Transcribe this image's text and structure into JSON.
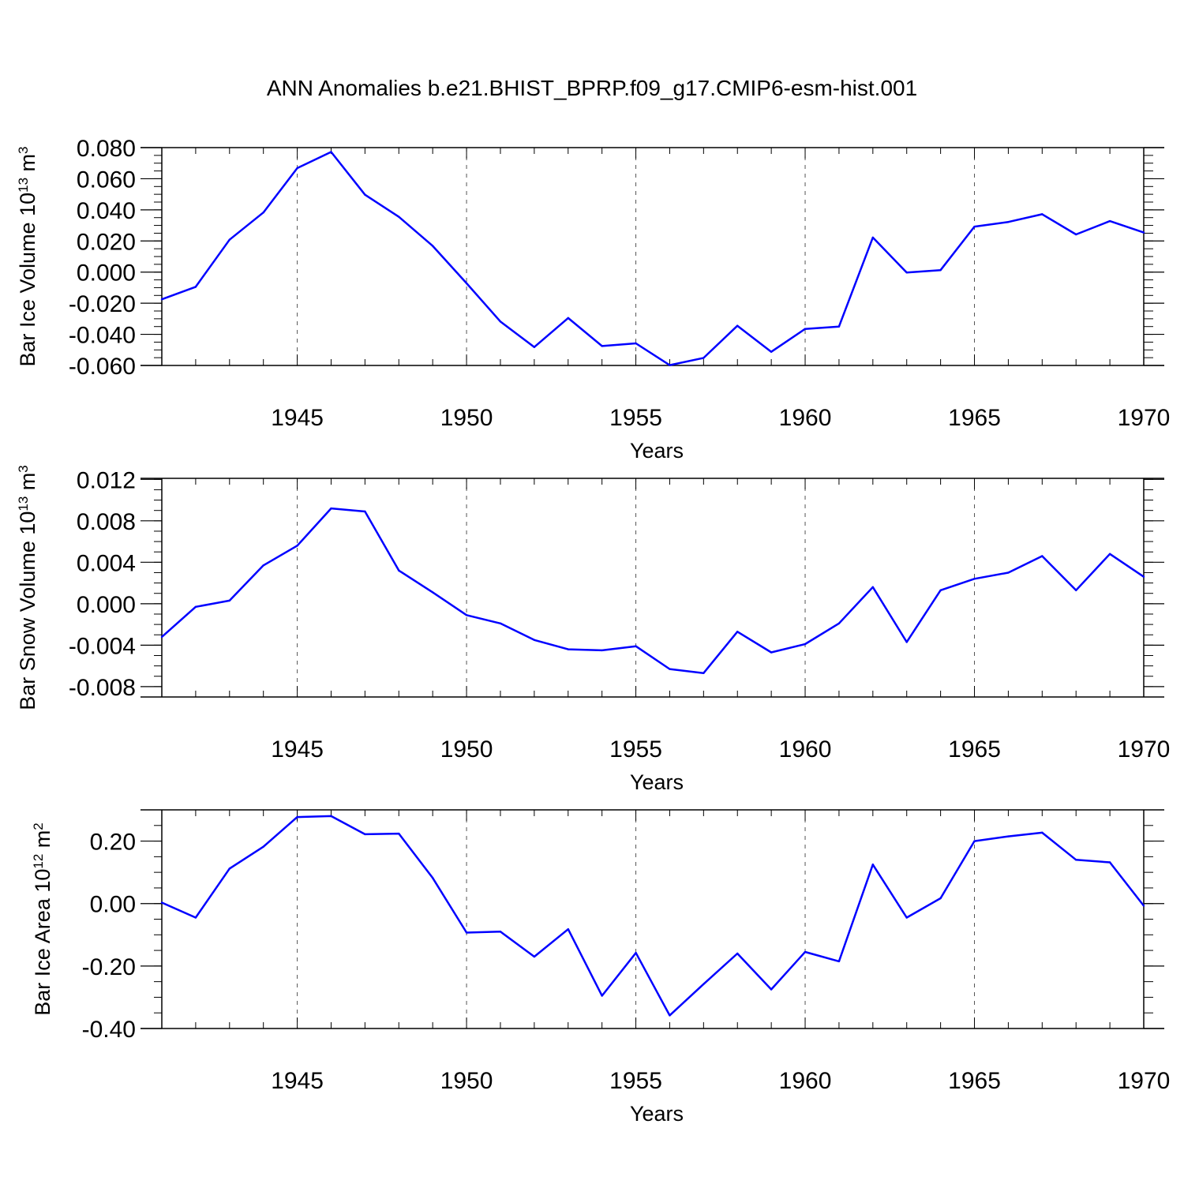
{
  "title": "ANN Anomalies b.e21.BHIST_BPRP.f09_g17.CMIP6-esm-hist.001",
  "line_color": "#0000ff",
  "gridline_color": "#555555",
  "chart_data": [
    {
      "type": "line",
      "ylabel": "Bar Ice Volume 10",
      "ylabel_sup": "13",
      "ylabel_unit": " m",
      "ylabel_unit_sup": "3",
      "xlabel": "Years",
      "xlim": [
        1941,
        1970
      ],
      "ylim": [
        -0.06,
        0.08
      ],
      "yticks": [
        -0.06,
        -0.04,
        -0.02,
        0.0,
        0.02,
        0.04,
        0.06,
        0.08
      ],
      "ytick_labels": [
        "-0.060",
        "-0.040",
        "-0.020",
        "0.000",
        "0.020",
        "0.040",
        "0.060",
        "0.080"
      ],
      "yminor_step": 0.005,
      "xticks": [
        1945,
        1950,
        1955,
        1960,
        1965,
        1970
      ],
      "xtick_labels": [
        "1945",
        "1950",
        "1955",
        "1960",
        "1965",
        "1970"
      ],
      "grid": "vertical dashed at major years",
      "x": [
        1941,
        1942,
        1943,
        1944,
        1945,
        1946,
        1947,
        1948,
        1949,
        1950,
        1951,
        1952,
        1953,
        1954,
        1955,
        1956,
        1957,
        1958,
        1959,
        1960,
        1961,
        1962,
        1963,
        1964,
        1965,
        1966,
        1967,
        1968,
        1969,
        1970
      ],
      "series": [
        {
          "values": [
            -0.0175,
            -0.0095,
            0.0208,
            0.0383,
            0.0668,
            0.0772,
            0.0497,
            0.0355,
            0.0168,
            -0.0072,
            -0.0318,
            -0.0482,
            -0.0295,
            -0.0475,
            -0.0458,
            -0.0598,
            -0.0552,
            -0.0345,
            -0.0512,
            -0.0365,
            -0.035,
            0.0222,
            -0.0003,
            0.0013,
            0.0292,
            0.0322,
            0.0372,
            0.0242,
            0.0328,
            0.0254
          ]
        }
      ]
    },
    {
      "type": "line",
      "ylabel": "Bar Snow Volume 10",
      "ylabel_sup": "13",
      "ylabel_unit": " m",
      "ylabel_unit_sup": "3",
      "xlabel": "Years",
      "xlim": [
        1941,
        1970
      ],
      "ylim": [
        -0.009,
        0.0121
      ],
      "yticks": [
        -0.008,
        -0.004,
        0.0,
        0.004,
        0.008,
        0.012
      ],
      "ytick_labels": [
        "-0.008",
        "-0.004",
        "0.000",
        "0.004",
        "0.008",
        "0.012"
      ],
      "yminor_step": 0.001,
      "xticks": [
        1945,
        1950,
        1955,
        1960,
        1965,
        1970
      ],
      "xtick_labels": [
        "1945",
        "1950",
        "1955",
        "1960",
        "1965",
        "1970"
      ],
      "grid": "vertical dashed at major years",
      "x": [
        1941,
        1942,
        1943,
        1944,
        1945,
        1946,
        1947,
        1948,
        1949,
        1950,
        1951,
        1952,
        1953,
        1954,
        1955,
        1956,
        1957,
        1958,
        1959,
        1960,
        1961,
        1962,
        1963,
        1964,
        1965,
        1966,
        1967,
        1968,
        1969,
        1970
      ],
      "series": [
        {
          "values": [
            -0.0032,
            -0.0003,
            0.0003,
            0.0037,
            0.0056,
            0.0092,
            0.0089,
            0.0032,
            0.0011,
            -0.0011,
            -0.0019,
            -0.0035,
            -0.0044,
            -0.0045,
            -0.0041,
            -0.0063,
            -0.0067,
            -0.0027,
            -0.0047,
            -0.0039,
            -0.0019,
            0.0016,
            -0.0037,
            0.0013,
            0.0024,
            0.003,
            0.0046,
            0.0013,
            0.0048,
            0.0026
          ]
        }
      ]
    },
    {
      "type": "line",
      "ylabel": "Bar Ice Area 10",
      "ylabel_sup": "12",
      "ylabel_unit": " m",
      "ylabel_unit_sup": "2",
      "xlabel": "Years",
      "xlim": [
        1941,
        1970
      ],
      "ylim": [
        -0.4,
        0.3
      ],
      "yticks": [
        -0.4,
        -0.2,
        0.0,
        0.2
      ],
      "ytick_labels": [
        "-0.40",
        "-0.20",
        "0.00",
        "0.20"
      ],
      "yminor_step": 0.05,
      "xticks": [
        1945,
        1950,
        1955,
        1960,
        1965,
        1970
      ],
      "xtick_labels": [
        "1945",
        "1950",
        "1955",
        "1960",
        "1965",
        "1970"
      ],
      "grid": "vertical dashed at major years",
      "x": [
        1941,
        1942,
        1943,
        1944,
        1945,
        1946,
        1947,
        1948,
        1949,
        1950,
        1951,
        1952,
        1953,
        1954,
        1955,
        1956,
        1957,
        1958,
        1959,
        1960,
        1961,
        1962,
        1963,
        1964,
        1965,
        1966,
        1967,
        1968,
        1969,
        1970
      ],
      "series": [
        {
          "values": [
            0.003,
            -0.045,
            0.112,
            0.182,
            0.277,
            0.28,
            0.222,
            0.224,
            0.082,
            -0.093,
            -0.09,
            -0.17,
            -0.082,
            -0.295,
            -0.158,
            -0.358,
            -0.258,
            -0.16,
            -0.275,
            -0.155,
            -0.185,
            0.125,
            -0.045,
            0.017,
            0.2,
            0.215,
            0.227,
            0.14,
            0.132,
            -0.007
          ]
        }
      ]
    }
  ]
}
